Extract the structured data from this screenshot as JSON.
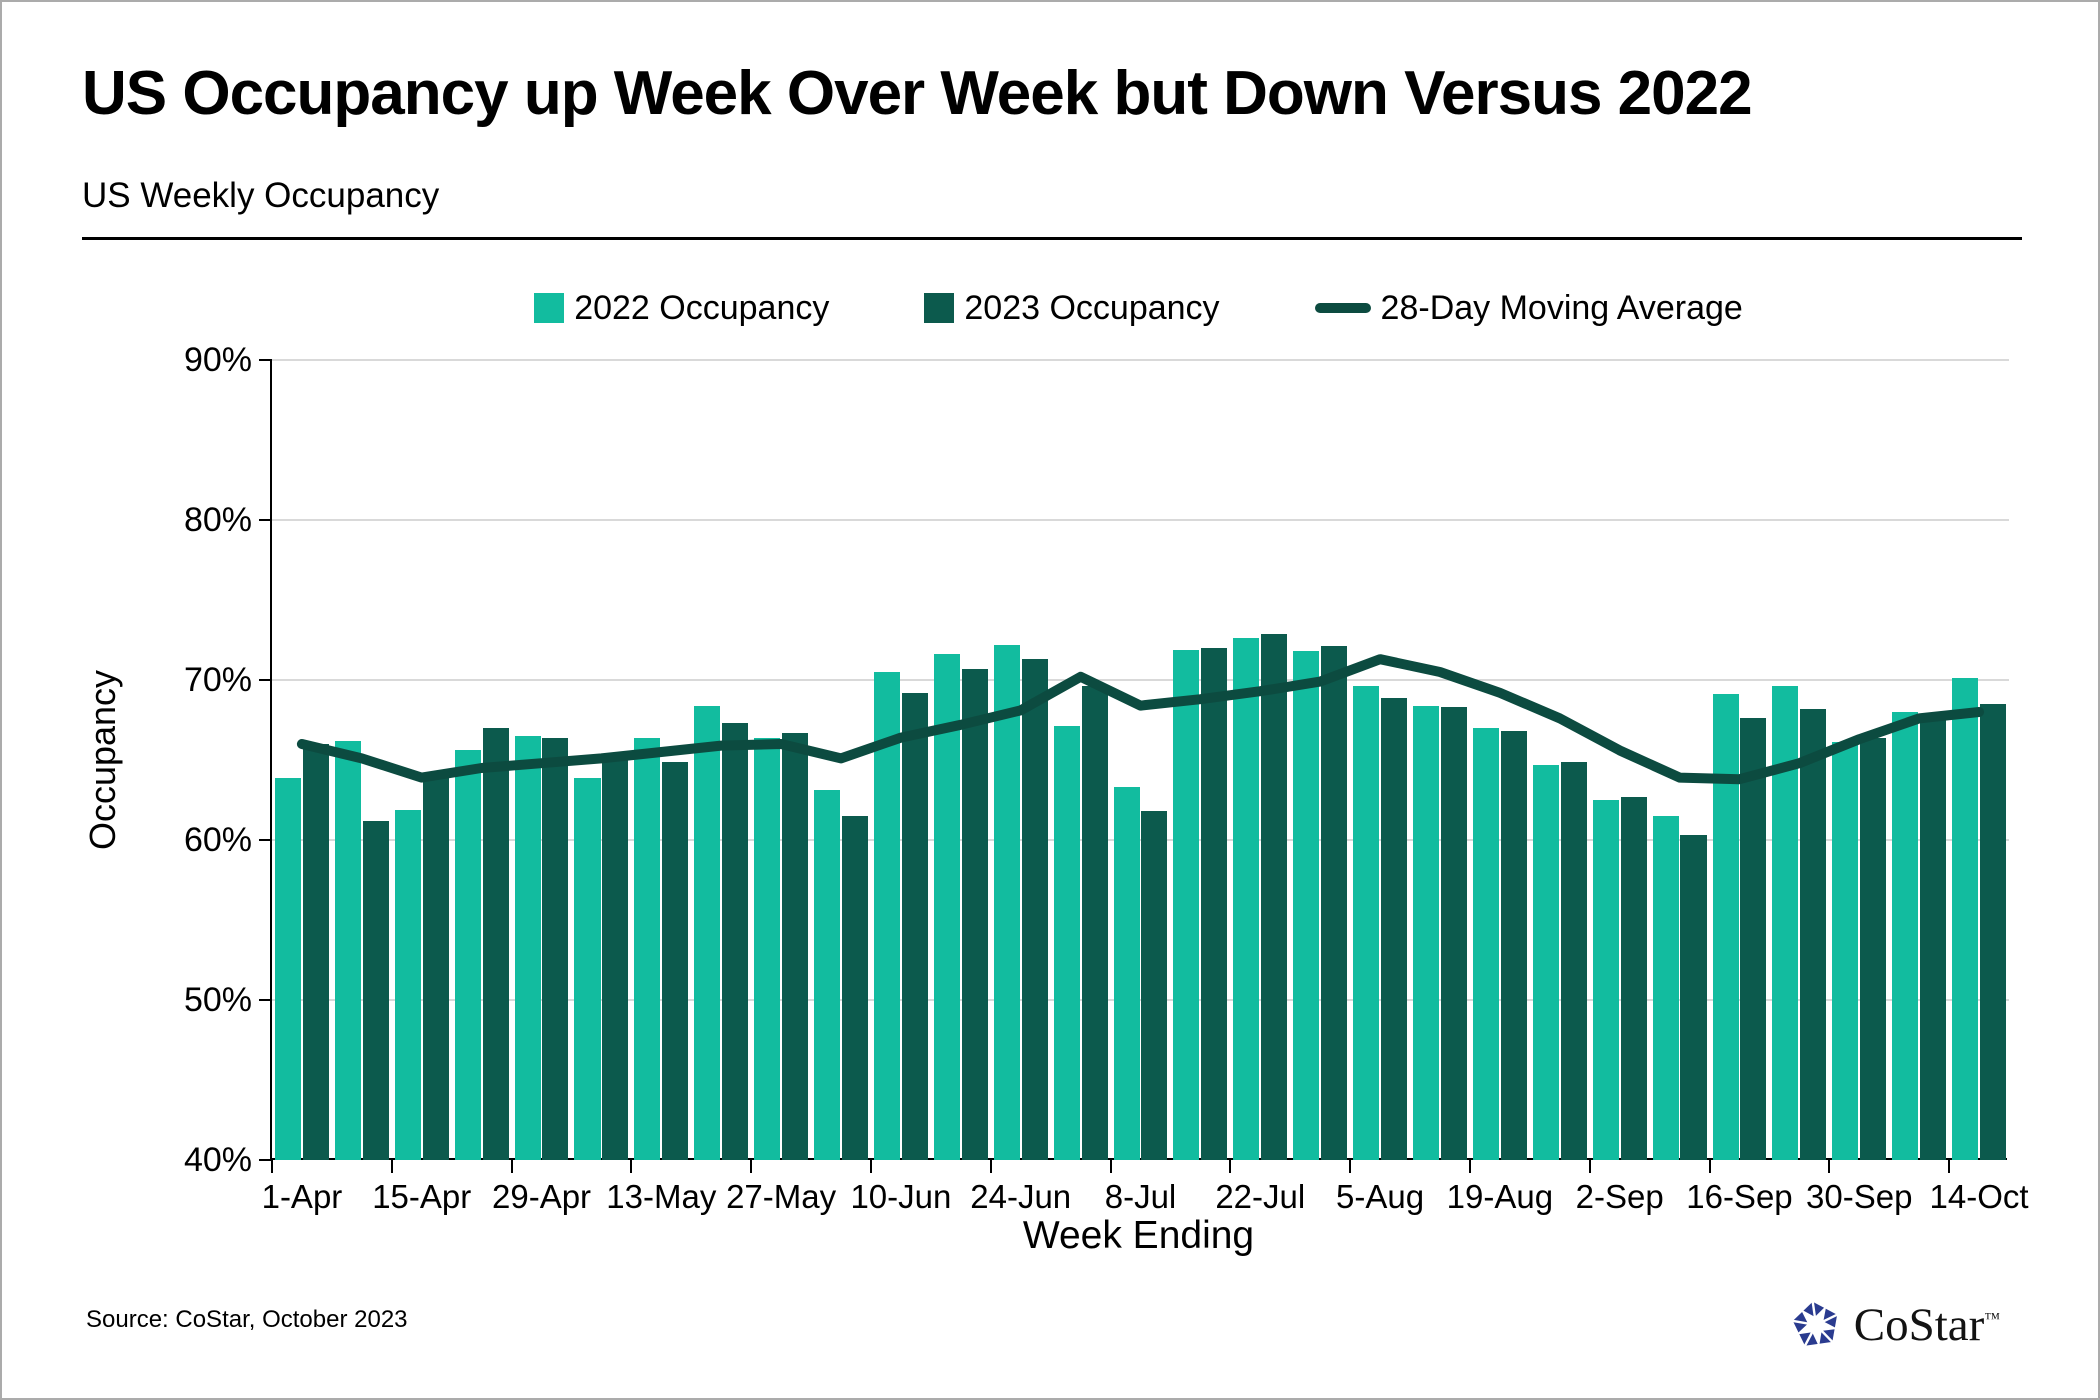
{
  "source": "Source: CoStar, October 2023",
  "logo": {
    "text": "CoStar",
    "tm": "™",
    "color": "#2A3B8F"
  },
  "chart_data": {
    "type": "bar+line",
    "title": "US Occupancy up Week Over Week but Down Versus 2022",
    "subtitle": "US Weekly Occupancy",
    "xlabel": "Week Ending",
    "ylabel": "Occupancy",
    "ylim": [
      40,
      90
    ],
    "grid": "horizontal",
    "legend_position": "top",
    "y_tick_values": [
      90,
      80,
      70,
      60,
      50,
      40
    ],
    "y_tick_labels": [
      "90%",
      "80%",
      "70%",
      "60%",
      "50%",
      "40%"
    ],
    "categories": [
      "1-Apr",
      "8-Apr",
      "15-Apr",
      "22-Apr",
      "29-Apr",
      "6-May",
      "13-May",
      "20-May",
      "27-May",
      "3-Jun",
      "10-Jun",
      "17-Jun",
      "24-Jun",
      "1-Jul",
      "8-Jul",
      "15-Jul",
      "22-Jul",
      "29-Jul",
      "5-Aug",
      "12-Aug",
      "19-Aug",
      "26-Aug",
      "2-Sep",
      "9-Sep",
      "16-Sep",
      "23-Sep",
      "30-Sep",
      "7-Oct",
      "14-Oct"
    ],
    "x_tick_labels": [
      "1-Apr",
      "15-Apr",
      "29-Apr",
      "13-May",
      "27-May",
      "10-Jun",
      "24-Jun",
      "8-Jul",
      "22-Jul",
      "5-Aug",
      "19-Aug",
      "2-Sep",
      "16-Sep",
      "30-Sep",
      "14-Oct"
    ],
    "series": [
      {
        "name": "2022 Occupancy",
        "type": "bar",
        "color": "#12BC9F",
        "values": [
          63.9,
          66.2,
          61.9,
          65.6,
          66.5,
          63.9,
          66.4,
          68.4,
          66.4,
          63.1,
          70.5,
          71.6,
          72.2,
          67.1,
          63.3,
          71.9,
          72.6,
          71.8,
          69.6,
          68.4,
          67.0,
          64.7,
          62.5,
          61.5,
          69.1,
          69.6,
          66.1,
          68.0,
          70.1
        ]
      },
      {
        "name": "2023 Occupancy",
        "type": "bar",
        "color": "#0C5A4D",
        "values": [
          66.0,
          61.2,
          63.9,
          67.0,
          66.4,
          65.0,
          64.9,
          67.3,
          66.7,
          61.5,
          69.2,
          70.7,
          71.3,
          69.6,
          61.8,
          72.0,
          72.9,
          72.1,
          68.9,
          68.3,
          66.8,
          64.9,
          62.7,
          60.3,
          67.6,
          68.2,
          66.4,
          67.6,
          68.5
        ]
      },
      {
        "name": "28-Day Moving Average",
        "type": "line",
        "color": "#0C4B40",
        "values": [
          66.0,
          65.1,
          63.9,
          64.5,
          64.8,
          65.1,
          65.5,
          65.9,
          66.0,
          65.1,
          66.4,
          67.2,
          68.1,
          70.2,
          68.4,
          68.8,
          69.3,
          69.9,
          71.3,
          70.5,
          69.2,
          67.6,
          65.6,
          63.9,
          63.8,
          64.8,
          66.3,
          67.6,
          68.0
        ]
      }
    ]
  }
}
